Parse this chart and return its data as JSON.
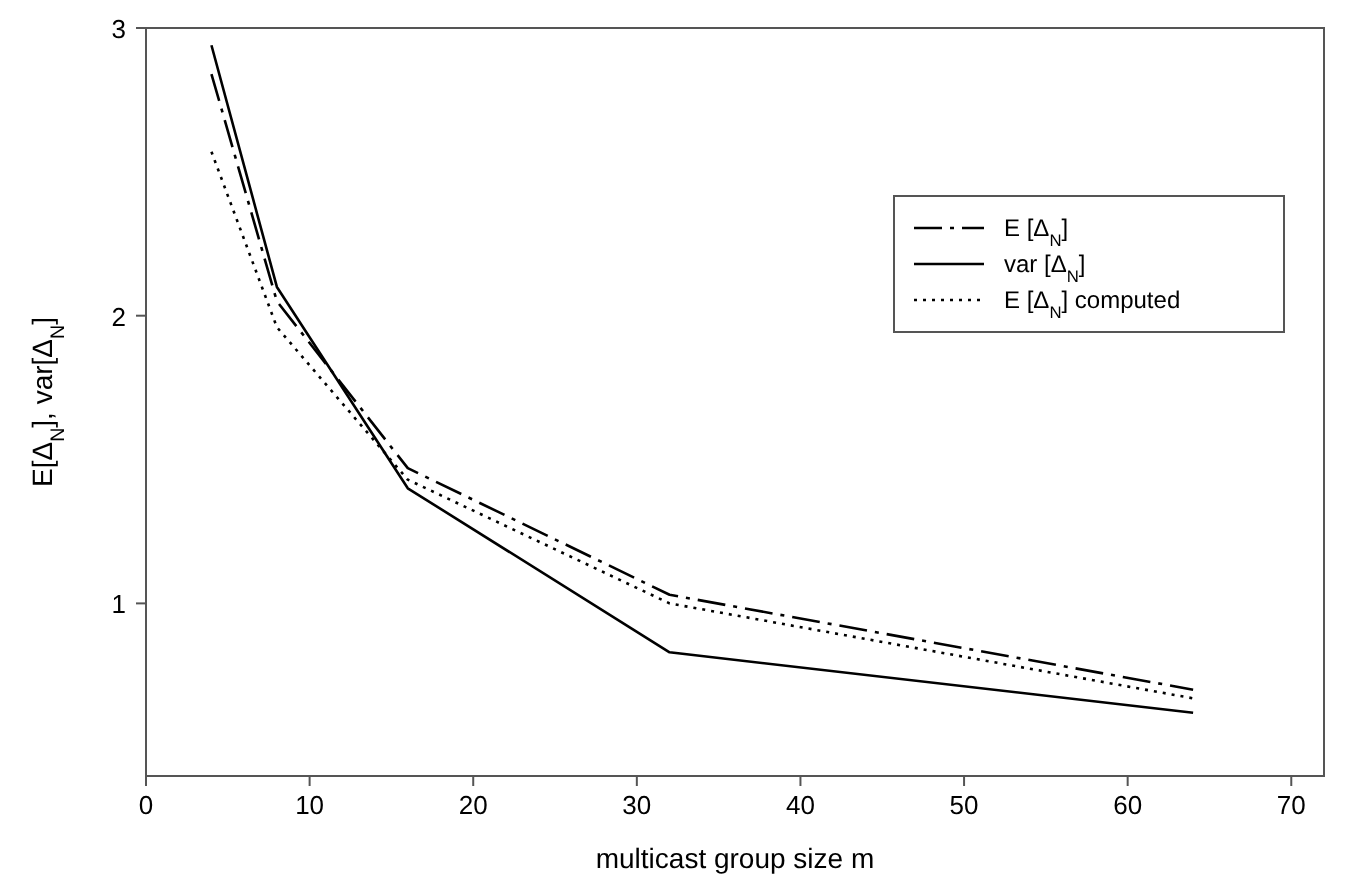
{
  "chart_data": {
    "type": "line",
    "xlabel": "multicast group size m",
    "ylabel": "E[Δ$_{N}$], var[Δ$_{N}$]",
    "x": [
      4,
      8,
      16,
      32,
      64
    ],
    "series": [
      {
        "name": "E [Δ$_{N}$]",
        "color": "#000000",
        "line_style": "dashed",
        "values": [
          2.84,
          2.05,
          1.47,
          1.03,
          0.7
        ]
      },
      {
        "name": "var [Δ$_{N}$]",
        "color": "#000000",
        "line_style": "solid",
        "values": [
          2.94,
          2.1,
          1.4,
          0.83,
          0.62
        ]
      },
      {
        "name": "E [Δ$_{N}$] computed",
        "color": "#000000",
        "line_style": "dotted",
        "values": [
          2.57,
          1.96,
          1.43,
          1.0,
          0.67
        ]
      }
    ],
    "xlim": [
      0,
      72
    ],
    "xticks": [
      0,
      10,
      20,
      30,
      40,
      50,
      60,
      70
    ],
    "ylim": [
      0.4,
      3
    ],
    "yticks": [
      1,
      2,
      3
    ],
    "grid": false,
    "legend": "top right",
    "marker": "none"
  }
}
